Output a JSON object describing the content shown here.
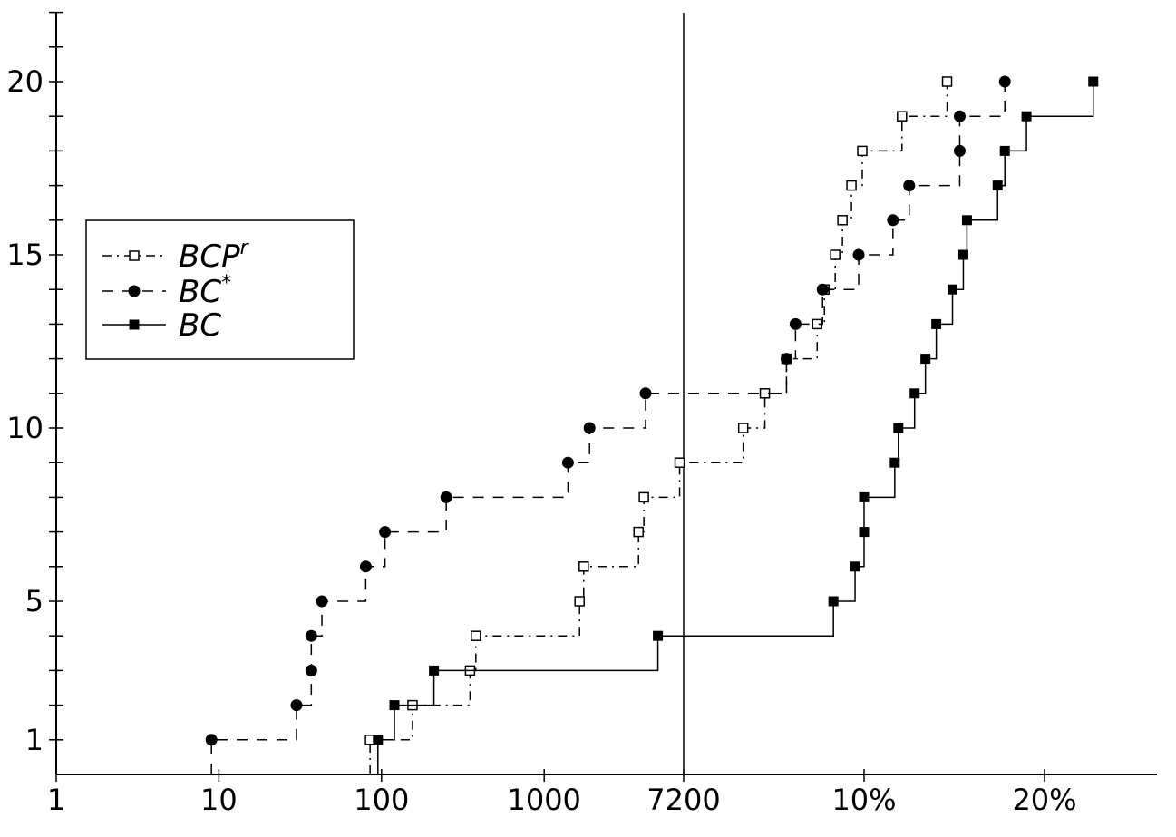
{
  "chart_data": {
    "type": "line",
    "subtype": "cumulative step plot",
    "title": "",
    "xlabel": "",
    "ylabel": "",
    "x_scale": "log-time (s) up to the 7200 limit, then relative gap in %",
    "xlim_time": [
      1,
      7200
    ],
    "xlim_gap_pct": [
      0,
      35
    ],
    "ylim": [
      0,
      22
    ],
    "x_ticks": [
      {
        "label": "1",
        "time": 1
      },
      {
        "label": "10",
        "time": 10
      },
      {
        "label": "100",
        "time": 100
      },
      {
        "label": "1000",
        "time": 1000
      },
      {
        "label": "7200",
        "time": 7200
      },
      {
        "label": "10%",
        "gap": 10
      },
      {
        "label": "20%",
        "gap": 20
      }
    ],
    "y_ticks": [
      1,
      5,
      10,
      15,
      20
    ],
    "grid": false,
    "reference_line": "7200",
    "legend": {
      "position": "left",
      "entries": [
        "BCP^r",
        "BC*",
        "BC"
      ]
    },
    "series": [
      {
        "name": "BCP^r",
        "legend_base": "BCP",
        "legend_sup": "r",
        "line_style": "dash-dot",
        "marker": "open-square",
        "color": "#000000",
        "points": [
          {
            "time": 85
          },
          {
            "time": 155
          },
          {
            "time": 350
          },
          {
            "time": 380
          },
          {
            "time": 1650
          },
          {
            "time": 1750
          },
          {
            "time": 3800
          },
          {
            "time": 4100
          },
          {
            "time": 6800
          },
          {
            "gap": 3.3
          },
          {
            "gap": 4.5
          },
          {
            "gap": 5.7
          },
          {
            "gap": 7.4
          },
          {
            "gap": 7.8
          },
          {
            "gap": 8.4
          },
          {
            "gap": 8.8
          },
          {
            "gap": 9.3
          },
          {
            "gap": 9.9
          },
          {
            "gap": 12.1
          },
          {
            "gap": 14.6
          }
        ]
      },
      {
        "name": "BC*",
        "legend_base": "BC",
        "legend_sup": "*",
        "line_style": "dashed",
        "marker": "filled-circle",
        "color": "#000000",
        "points": [
          {
            "time": 9
          },
          {
            "time": 30
          },
          {
            "time": 37
          },
          {
            "time": 37
          },
          {
            "time": 43
          },
          {
            "time": 80
          },
          {
            "time": 105
          },
          {
            "time": 250
          },
          {
            "time": 1400
          },
          {
            "time": 1900
          },
          {
            "time": 4200
          },
          {
            "gap": 5.7
          },
          {
            "gap": 6.2
          },
          {
            "gap": 7.7
          },
          {
            "gap": 9.7
          },
          {
            "gap": 11.6
          },
          {
            "gap": 12.5
          },
          {
            "gap": 15.3
          },
          {
            "gap": 15.3
          },
          {
            "gap": 17.8
          }
        ]
      },
      {
        "name": "BC",
        "legend_base": "BC",
        "legend_sup": "",
        "line_style": "solid",
        "marker": "filled-square",
        "color": "#000000",
        "points": [
          {
            "time": 95
          },
          {
            "time": 120
          },
          {
            "time": 210
          },
          {
            "time": 5000
          },
          {
            "gap": 8.3
          },
          {
            "gap": 9.5
          },
          {
            "gap": 10.0
          },
          {
            "gap": 10.0
          },
          {
            "gap": 11.7
          },
          {
            "gap": 11.9
          },
          {
            "gap": 12.8
          },
          {
            "gap": 13.4
          },
          {
            "gap": 14.0
          },
          {
            "gap": 14.9
          },
          {
            "gap": 15.5
          },
          {
            "gap": 15.7
          },
          {
            "gap": 17.4
          },
          {
            "gap": 17.8
          },
          {
            "gap": 19.0
          },
          {
            "gap": 22.7
          }
        ]
      }
    ]
  }
}
